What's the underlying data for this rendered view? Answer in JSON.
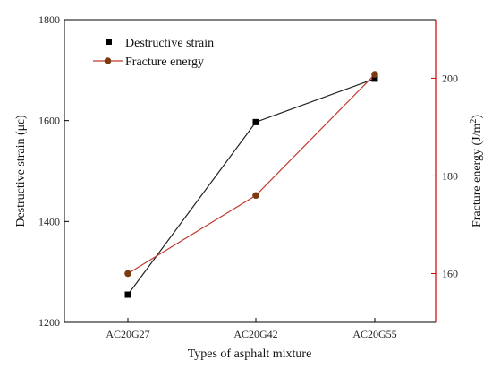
{
  "chart_data": {
    "type": "line",
    "categories": [
      "AC20G27",
      "AC20G42",
      "AC20G55"
    ],
    "xlabel": "Types of asphalt mixture",
    "grid": false,
    "legend_position": "top-left",
    "left_axis": {
      "label": "Destructive strain (με)",
      "ylim": [
        1200,
        1800
      ],
      "ticks": [
        1200,
        1400,
        1600,
        1800
      ],
      "color": "#000000"
    },
    "right_axis": {
      "label_main": "Fracture energy (J/m",
      "label_sup": "2",
      "label_end": ")",
      "ylim": [
        150,
        212
      ],
      "ticks": [
        160,
        180,
        200
      ],
      "color": "#cc0000"
    },
    "series": [
      {
        "name": "Destructive strain",
        "axis": "left",
        "x": [
          1.0,
          2.0,
          2.93
        ],
        "values": [
          1255,
          1597,
          1683
        ],
        "line_color": "#222222",
        "marker": "square",
        "marker_color": "#000000"
      },
      {
        "name": "Fracture energy",
        "axis": "right",
        "x": [
          1.0,
          2.0,
          2.93
        ],
        "values": [
          160,
          176,
          200.8
        ],
        "line_color": "#c0392b",
        "marker": "circle",
        "marker_color": "#7a3b10"
      }
    ]
  }
}
